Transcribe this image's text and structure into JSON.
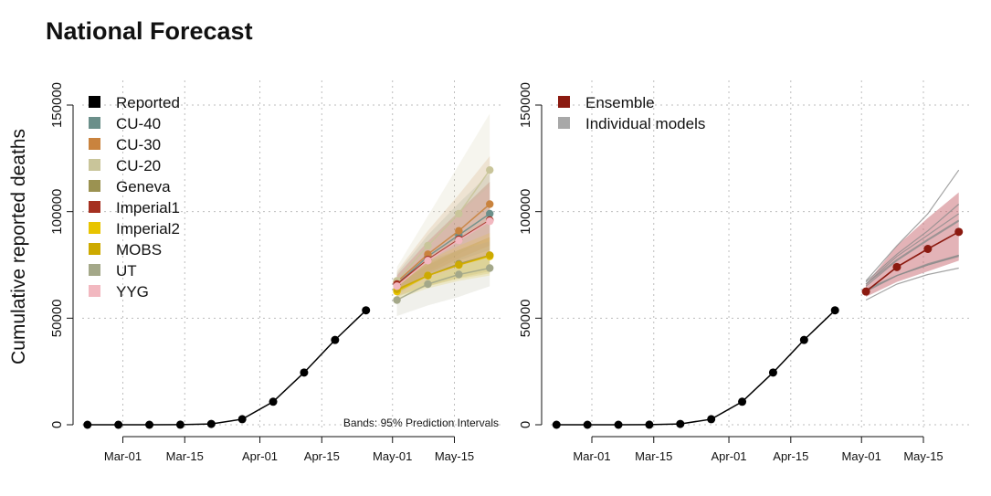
{
  "title": "National Forecast",
  "ylabel": "Cumulative reported deaths",
  "note": "Bands: 95% Prediction Intervals",
  "chart_data": [
    {
      "type": "line",
      "panel": "left",
      "ylim": [
        0,
        150000
      ],
      "yticks": [
        0,
        50000,
        100000,
        150000
      ],
      "xticks": [
        "Mar-01",
        "Mar-15",
        "Apr-01",
        "Apr-15",
        "May-01",
        "May-15"
      ],
      "xtick_dates": [
        "2020-03-01",
        "2020-03-15",
        "2020-04-01",
        "2020-04-15",
        "2020-05-01",
        "2020-05-15"
      ],
      "grid": true,
      "legend_position": "top-left",
      "reported": {
        "name": "Reported",
        "color": "#000000",
        "dates": [
          "2020-02-22",
          "2020-02-29",
          "2020-03-07",
          "2020-03-14",
          "2020-03-21",
          "2020-03-28",
          "2020-04-04",
          "2020-04-11",
          "2020-04-18",
          "2020-04-25"
        ],
        "values": [
          0,
          0,
          0,
          50,
          400,
          2600,
          10800,
          24500,
          39800,
          53700
        ]
      },
      "forecast_dates": [
        "2020-05-02",
        "2020-05-09",
        "2020-05-16",
        "2020-05-23"
      ],
      "series": [
        {
          "name": "CU-40",
          "color": "#6b8f8a",
          "values": [
            66000,
            79000,
            89000,
            99000
          ],
          "lower": [
            61000,
            70000,
            77000,
            82000
          ],
          "upper": [
            71000,
            89000,
            104000,
            118000
          ]
        },
        {
          "name": "CU-30",
          "color": "#c9833e",
          "values": [
            67000,
            80000,
            91000,
            103500
          ],
          "lower": [
            62000,
            71000,
            78000,
            84000
          ],
          "upper": [
            72000,
            91000,
            108000,
            126000
          ]
        },
        {
          "name": "CU-20",
          "color": "#c9c59a",
          "values": [
            67500,
            84000,
            99000,
            119500
          ],
          "lower": [
            62000,
            72000,
            80000,
            88000
          ],
          "upper": [
            74000,
            98000,
            122000,
            146000
          ]
        },
        {
          "name": "Geneva",
          "color": "#9b9251",
          "values": [
            63000,
            70000,
            75500,
            79500
          ],
          "lower": [
            60000,
            65000,
            69000,
            72000
          ],
          "upper": [
            66000,
            75000,
            82000,
            88000
          ]
        },
        {
          "name": "Imperial1",
          "color": "#a53020",
          "values": [
            66000,
            77500,
            87000,
            96000
          ],
          "lower": [
            62000,
            70000,
            75000,
            80000
          ],
          "upper": [
            70000,
            86000,
            100000,
            114000
          ]
        },
        {
          "name": "Imperial2",
          "color": "#e8c400",
          "values": [
            62500,
            70000,
            75000,
            79000
          ],
          "lower": [
            59000,
            64000,
            67500,
            70000
          ],
          "upper": [
            66500,
            77000,
            84000,
            90000
          ]
        },
        {
          "name": "MOBS",
          "color": "#cdaa00",
          "values": [
            63500,
            70000,
            75000,
            79500
          ],
          "lower": [
            60500,
            65000,
            68500,
            71000
          ],
          "upper": [
            67000,
            76000,
            82000,
            88000
          ]
        },
        {
          "name": "UT",
          "color": "#a4a889",
          "values": [
            58500,
            66000,
            70500,
            73500
          ],
          "lower": [
            51000,
            56000,
            60000,
            65000
          ],
          "upper": [
            66000,
            77000,
            82000,
            86000
          ]
        },
        {
          "name": "YYG",
          "color": "#f2b8c0",
          "values": [
            65000,
            77000,
            86500,
            95500
          ],
          "lower": [
            60000,
            68000,
            74000,
            79000
          ],
          "upper": [
            70000,
            86000,
            99000,
            112000
          ]
        }
      ]
    },
    {
      "type": "line",
      "panel": "right",
      "ylim": [
        0,
        150000
      ],
      "yticks": [
        0,
        50000,
        100000,
        150000
      ],
      "xticks": [
        "Mar-01",
        "Mar-15",
        "Apr-01",
        "Apr-15",
        "May-01",
        "May-15"
      ],
      "xtick_dates": [
        "2020-03-01",
        "2020-03-15",
        "2020-04-01",
        "2020-04-15",
        "2020-05-01",
        "2020-05-15"
      ],
      "grid": true,
      "legend_position": "top-left",
      "legend": [
        {
          "name": "Ensemble",
          "color": "#8b1a10"
        },
        {
          "name": "Individual models",
          "color": "#a8a8a8"
        }
      ],
      "reported": {
        "color": "#000000",
        "dates": [
          "2020-02-22",
          "2020-02-29",
          "2020-03-07",
          "2020-03-14",
          "2020-03-21",
          "2020-03-28",
          "2020-04-04",
          "2020-04-11",
          "2020-04-18",
          "2020-04-25"
        ],
        "values": [
          0,
          0,
          0,
          50,
          400,
          2600,
          10800,
          24500,
          39800,
          53700
        ]
      },
      "forecast_dates": [
        "2020-05-02",
        "2020-05-09",
        "2020-05-16",
        "2020-05-23"
      ],
      "ensemble": {
        "name": "Ensemble",
        "color": "#8b1a10",
        "band_color": "#c86870",
        "values": [
          62500,
          74000,
          82500,
          90500
        ],
        "lower": [
          60000,
          67000,
          72000,
          77000
        ],
        "upper": [
          66000,
          84000,
          97000,
          109000
        ]
      },
      "individual_color": "#8c8c8c"
    }
  ]
}
